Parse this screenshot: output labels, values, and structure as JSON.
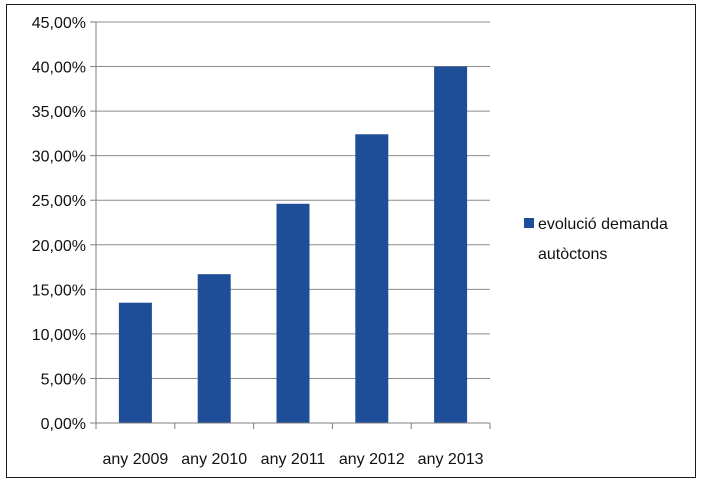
{
  "chart_data": {
    "type": "bar",
    "categories": [
      "any 2009",
      "any 2010",
      "any 2011",
      "any 2012",
      "any 2013"
    ],
    "series": [
      {
        "name": "evolució demanda autòctons",
        "values": [
          13.5,
          16.7,
          24.6,
          32.4,
          40.0
        ],
        "color": "#1f4e99"
      }
    ],
    "y_tick_labels": [
      "0,00%",
      "5,00%",
      "10,00%",
      "15,00%",
      "20,00%",
      "25,00%",
      "30,00%",
      "35,00%",
      "40,00%",
      "45,00%"
    ],
    "legend_lines": [
      "evolució demanda",
      "autòctons"
    ],
    "ylim": [
      0,
      45
    ],
    "ystep": 5,
    "grid": true,
    "legend_position": "right",
    "colors": {
      "bar": "#1f4e99",
      "grid": "#8c8c8c",
      "axis": "#7f7f7f",
      "text": "#111111"
    }
  }
}
